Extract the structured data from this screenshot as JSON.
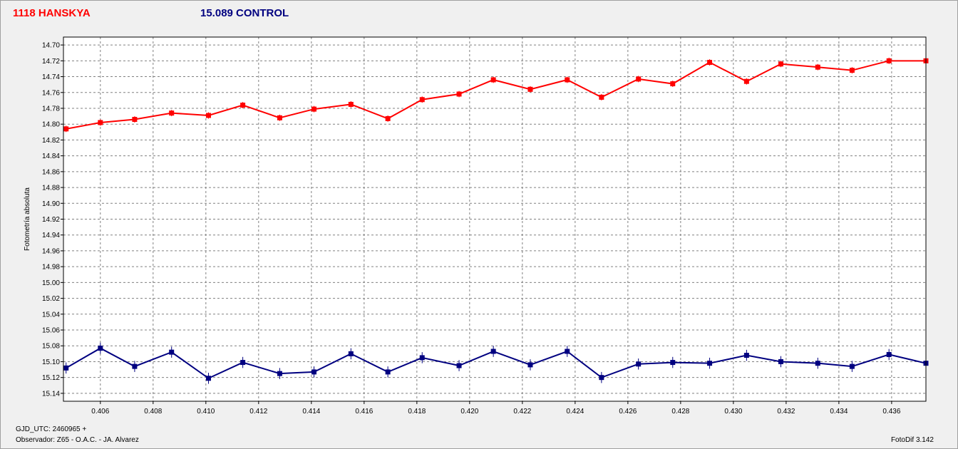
{
  "legend": {
    "target_label": "1118 HANSKYA",
    "control_label": "15.089 CONTROL"
  },
  "colors": {
    "target": "#ff0000",
    "control": "#000080",
    "grid": "#808080",
    "plot_bg": "#ffffff"
  },
  "footer": {
    "gjd": "GJD_UTC: 2460965 +",
    "observer": "Observador: Z65 - O.A.C. - JA. Alvarez",
    "software": "FotoDif 3.142"
  },
  "chart_data": {
    "type": "line",
    "ylabel": "Fotometría absoluta",
    "xlabel": "",
    "xlim": [
      0.4046,
      0.4373
    ],
    "ylim": [
      14.69,
      15.15
    ],
    "y_inverted": true,
    "grid": true,
    "x_ticks": [
      "0.406",
      "0.408",
      "0.410",
      "0.412",
      "0.414",
      "0.416",
      "0.418",
      "0.420",
      "0.422",
      "0.424",
      "0.426",
      "0.428",
      "0.430",
      "0.432",
      "0.434",
      "0.436"
    ],
    "y_ticks": [
      "14.70",
      "14.72",
      "14.74",
      "14.76",
      "14.78",
      "14.80",
      "14.82",
      "14.84",
      "14.86",
      "14.88",
      "14.90",
      "14.92",
      "14.94",
      "14.96",
      "14.98",
      "15.00",
      "15.02",
      "15.04",
      "15.06",
      "15.08",
      "15.10",
      "15.12",
      "15.14"
    ],
    "x": [
      0.4047,
      0.406,
      0.4073,
      0.4087,
      0.4101,
      0.4114,
      0.4128,
      0.4141,
      0.4155,
      0.4169,
      0.4182,
      0.4196,
      0.4209,
      0.4223,
      0.4237,
      0.425,
      0.4264,
      0.4277,
      0.4291,
      0.4305,
      0.4318,
      0.4332,
      0.4345,
      0.4359,
      0.4373
    ],
    "series": [
      {
        "name": "1118 HANSKYA",
        "values": [
          14.806,
          14.798,
          14.794,
          14.786,
          14.789,
          14.776,
          14.792,
          14.781,
          14.775,
          14.793,
          14.769,
          14.762,
          14.744,
          14.756,
          14.744,
          14.766,
          14.743,
          14.749,
          14.722,
          14.746,
          14.724,
          14.728,
          14.732,
          14.72,
          14.72
        ],
        "error": 0.004
      },
      {
        "name": "15.089 CONTROL",
        "values": [
          15.108,
          15.083,
          15.106,
          15.088,
          15.121,
          15.101,
          15.115,
          15.113,
          15.09,
          15.113,
          15.095,
          15.105,
          15.087,
          15.104,
          15.087,
          15.12,
          15.103,
          15.101,
          15.102,
          15.092,
          15.1,
          15.102,
          15.106,
          15.091,
          15.102
        ],
        "error": 0.007
      }
    ]
  }
}
